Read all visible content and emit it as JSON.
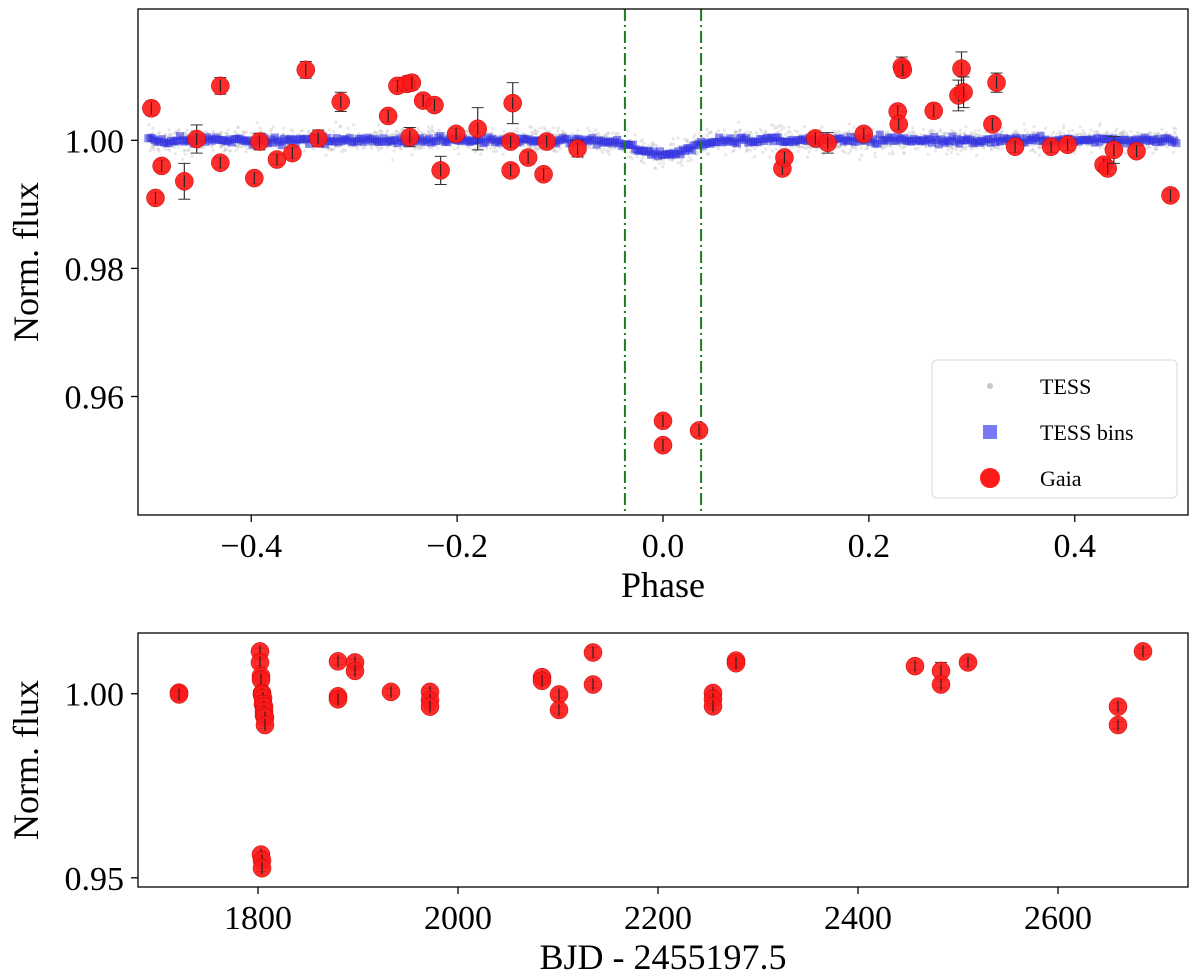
{
  "chart_data": [
    {
      "type": "scatter",
      "xlabel": "Phase",
      "ylabel": "Norm. flux",
      "xlim": [
        -0.51,
        0.51
      ],
      "ylim": [
        0.9415,
        1.0205
      ],
      "xticks": [
        -0.4,
        -0.2,
        0.0,
        0.2,
        0.4
      ],
      "xtick_labels": [
        "−0.4",
        "−0.2",
        "0.0",
        "0.2",
        "0.4"
      ],
      "yticks": [
        0.96,
        0.98,
        1.0
      ],
      "ytick_labels": [
        "0.96",
        "0.98",
        "1.00"
      ],
      "vlines": [
        -0.037,
        0.037
      ],
      "vline_color": "#1e7d1e",
      "legend": {
        "placement": "lower-right",
        "entries": [
          {
            "label": "TESS",
            "marker": "small-circle",
            "color": "#c8c8c8"
          },
          {
            "label": "TESS bins",
            "marker": "square",
            "color": "#7a7af5"
          },
          {
            "label": "Gaia",
            "marker": "circle",
            "color": "#ff1a1a"
          }
        ]
      },
      "series": [
        {
          "name": "TESS",
          "color": "#bdbdbd",
          "note": "dense cloud of individual TESS points, ~1.000 with scatter ±0.002, dip to ~0.998 near phase 0"
        },
        {
          "name": "TESS bins",
          "color": "#2d2de0",
          "model": {
            "baseline": 1.0,
            "dip_depth": 0.0022,
            "dip_halfwidth": 0.04
          }
        },
        {
          "name": "Gaia",
          "color": "#ff1a1a",
          "points": [
            [
              -0.497,
              1.005,
              0.0011
            ],
            [
              -0.493,
              0.991,
              0.0008
            ],
            [
              -0.487,
              0.996,
              0.0009
            ],
            [
              -0.465,
              0.9936,
              0.0028
            ],
            [
              -0.453,
              1.0002,
              0.0022
            ],
            [
              -0.43,
              1.0085,
              0.0013
            ],
            [
              -0.43,
              0.9965,
              0.0008
            ],
            [
              -0.397,
              0.9941,
              0.0009
            ],
            [
              -0.392,
              0.9998,
              0.0013
            ],
            [
              -0.375,
              0.997,
              0.0008
            ],
            [
              -0.36,
              0.998,
              0.0008
            ],
            [
              -0.347,
              1.011,
              0.0013
            ],
            [
              -0.335,
              1.0003,
              0.0013
            ],
            [
              -0.313,
              1.006,
              0.0015
            ],
            [
              -0.267,
              1.0038,
              0.0009
            ],
            [
              -0.258,
              1.0085,
              0.0008
            ],
            [
              -0.249,
              1.0088,
              0.0009
            ],
            [
              -0.246,
              1.0005,
              0.0015
            ],
            [
              -0.244,
              1.009,
              0.0011
            ],
            [
              -0.233,
              1.0062,
              0.0009
            ],
            [
              -0.222,
              1.0055,
              0.0009
            ],
            [
              -0.216,
              0.9953,
              0.0022
            ],
            [
              -0.201,
              1.001,
              0.0008
            ],
            [
              -0.18,
              1.0018,
              0.0033
            ],
            [
              -0.148,
              0.9953,
              0.0009
            ],
            [
              -0.146,
              1.0058,
              0.0032
            ],
            [
              -0.148,
              0.9998,
              0.0009
            ],
            [
              -0.131,
              0.9973,
              0.0009
            ],
            [
              -0.116,
              0.9947,
              0.0009
            ],
            [
              -0.113,
              0.9998,
              0.0009
            ],
            [
              -0.083,
              0.9987,
              0.0013
            ],
            [
              0.0,
              0.9562,
              0.0009
            ],
            [
              0.0,
              0.9524,
              0.0009
            ],
            [
              0.035,
              0.9547,
              0.0009
            ],
            [
              0.116,
              0.9956,
              0.0009
            ],
            [
              0.118,
              0.9973,
              0.0009
            ],
            [
              0.148,
              1.0003,
              0.0009
            ],
            [
              0.16,
              0.9996,
              0.0016
            ],
            [
              0.195,
              1.001,
              0.0009
            ],
            [
              0.228,
              1.0045,
              0.0009
            ],
            [
              0.229,
              1.0025,
              0.0009
            ],
            [
              0.232,
              1.0115,
              0.0015
            ],
            [
              0.233,
              1.011,
              0.0009
            ],
            [
              0.263,
              1.0046,
              0.0011
            ],
            [
              0.287,
              1.007,
              0.0024
            ],
            [
              0.29,
              1.0112,
              0.0026
            ],
            [
              0.292,
              1.0075,
              0.0024
            ],
            [
              0.32,
              1.0025,
              0.0009
            ],
            [
              0.324,
              1.009,
              0.0015
            ],
            [
              0.342,
              0.999,
              0.0009
            ],
            [
              0.377,
              0.999,
              0.0009
            ],
            [
              0.393,
              0.9993,
              0.0009
            ],
            [
              0.428,
              0.9962,
              0.0009
            ],
            [
              0.432,
              0.9956,
              0.0009
            ],
            [
              0.438,
              0.9985,
              0.0021
            ],
            [
              0.46,
              0.9983,
              0.0009
            ],
            [
              0.493,
              0.9914,
              0.0009
            ]
          ]
        }
      ]
    },
    {
      "type": "scatter",
      "xlabel": "BJD - 2455197.5",
      "ylabel": "Norm. flux",
      "xlim": [
        1680,
        2730
      ],
      "ylim": [
        0.9475,
        1.0165
      ],
      "xticks": [
        1800,
        2000,
        2200,
        2400,
        2600
      ],
      "xtick_labels": [
        "1800",
        "2000",
        "2200",
        "2400",
        "2600"
      ],
      "yticks": [
        0.95,
        1.0
      ],
      "ytick_labels": [
        "0.95",
        "1.00"
      ],
      "series": [
        {
          "name": "Gaia",
          "color": "#ff1a1a",
          "points": [
            [
              1721,
              1.0003,
              0.0008
            ],
            [
              1721,
              0.9998,
              0.0008
            ],
            [
              1802,
              1.0115,
              0.0009
            ],
            [
              1802,
              1.0085,
              0.0009
            ],
            [
              1803,
              1.0048,
              0.0009
            ],
            [
              1803,
              1.0038,
              0.0009
            ],
            [
              1804,
              1.0002,
              0.0009
            ],
            [
              1804,
              0.9998,
              0.0009
            ],
            [
              1805,
              0.9988,
              0.0009
            ],
            [
              1805,
              0.9972,
              0.0009
            ],
            [
              1806,
              0.9965,
              0.0009
            ],
            [
              1806,
              0.9953,
              0.0009
            ],
            [
              1806,
              0.9941,
              0.0009
            ],
            [
              1807,
              0.9935,
              0.0009
            ],
            [
              1807,
              0.9915,
              0.0009
            ],
            [
              1803,
              0.9563,
              0.0009
            ],
            [
              1804,
              0.9547,
              0.0009
            ],
            [
              1804,
              0.9526,
              0.0009
            ],
            [
              1880,
              1.0088,
              0.0009
            ],
            [
              1880,
              0.9993,
              0.0009
            ],
            [
              1880,
              0.9985,
              0.0009
            ],
            [
              1897,
              1.0085,
              0.0009
            ],
            [
              1897,
              1.0062,
              0.0009
            ],
            [
              1933,
              1.0005,
              0.0009
            ],
            [
              1972,
              1.0005,
              0.0009
            ],
            [
              1972,
              0.9983,
              0.0009
            ],
            [
              1972,
              0.9965,
              0.0009
            ],
            [
              2084,
              1.0045,
              0.0009
            ],
            [
              2084,
              1.0035,
              0.0009
            ],
            [
              2101,
              0.9998,
              0.0009
            ],
            [
              2101,
              0.9956,
              0.0009
            ],
            [
              2135,
              1.0112,
              0.0014
            ],
            [
              2135,
              1.0025,
              0.0009
            ],
            [
              2255,
              1.0002,
              0.0009
            ],
            [
              2255,
              0.9985,
              0.0009
            ],
            [
              2255,
              0.9966,
              0.0009
            ],
            [
              2278,
              1.009,
              0.0009
            ],
            [
              2278,
              1.0083,
              0.0009
            ],
            [
              2457,
              1.0075,
              0.0009
            ],
            [
              2483,
              1.0062,
              0.0023
            ],
            [
              2483,
              1.0025,
              0.0009
            ],
            [
              2510,
              1.0085,
              0.0009
            ],
            [
              2660,
              0.9965,
              0.0009
            ],
            [
              2660,
              0.9915,
              0.0009
            ],
            [
              2685,
              1.0115,
              0.0009
            ]
          ]
        }
      ]
    }
  ]
}
